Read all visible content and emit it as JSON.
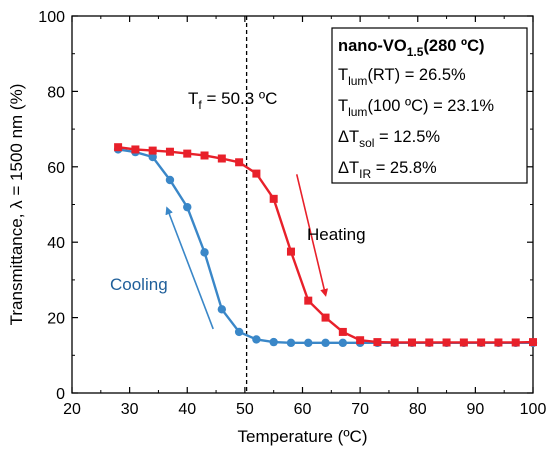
{
  "chart_data": {
    "type": "line",
    "xlabel": "Temperature (ºC)",
    "ylabel": "Transmittance, λ = 1500 nm (%)",
    "xlim": [
      20,
      100
    ],
    "ylim": [
      0,
      100
    ],
    "xticks": [
      "20",
      "30",
      "40",
      "50",
      "60",
      "70",
      "80",
      "90",
      "100"
    ],
    "yticks": [
      "0",
      "20",
      "40",
      "60",
      "80",
      "100"
    ],
    "grid": false,
    "series": [
      {
        "name": "Heating",
        "color": "#e8202a",
        "marker": "square",
        "x": [
          28,
          31,
          34,
          37,
          40,
          43,
          46,
          49,
          52,
          55,
          58,
          61,
          64,
          67,
          70,
          73,
          76,
          79,
          82,
          85,
          88,
          91,
          94,
          97,
          100
        ],
        "y": [
          65.2,
          64.6,
          64.3,
          64.0,
          63.5,
          63.0,
          62.2,
          61.2,
          58.2,
          51.5,
          37.5,
          24.5,
          20.0,
          16.2,
          14.0,
          13.5,
          13.4,
          13.4,
          13.4,
          13.4,
          13.4,
          13.4,
          13.4,
          13.4,
          13.5
        ]
      },
      {
        "name": "Cooling",
        "color": "#3a87c8",
        "marker": "circle",
        "x": [
          28,
          31,
          34,
          37,
          40,
          43,
          46,
          49,
          52,
          55,
          58,
          61,
          64,
          67,
          70,
          73,
          76,
          79,
          82,
          85,
          88,
          91,
          94,
          97,
          100
        ],
        "y": [
          64.6,
          63.9,
          62.6,
          56.5,
          49.3,
          37.3,
          22.2,
          16.2,
          14.2,
          13.5,
          13.3,
          13.3,
          13.3,
          13.3,
          13.3,
          13.3,
          13.3,
          13.3,
          13.3,
          13.3,
          13.3,
          13.3,
          13.3,
          13.3,
          13.3
        ]
      }
    ],
    "vline": {
      "x": 50.3,
      "label_main": "T",
      "label_sub": "f",
      "label_rest": " = 50.3 ºC"
    },
    "annotations": {
      "heating_label": "Heating",
      "cooling_label": "Cooling",
      "heating_arrow": {
        "from": [
          59,
          58
        ],
        "to": [
          64,
          26
        ]
      },
      "cooling_arrow": {
        "from": [
          44.5,
          17
        ],
        "to": [
          36.5,
          49
        ]
      }
    },
    "legend_box": {
      "title_main": "nano-VO",
      "title_sub": "1.5",
      "title_rest": "(280 ºC)",
      "rows": [
        {
          "main": "T",
          "sub": "lum",
          "rest": "(RT) = 26.5%"
        },
        {
          "main": "T",
          "sub": "lum",
          "rest": "(100 ºC) = 23.1%"
        },
        {
          "main": "ΔT",
          "sub": "sol",
          "rest": " = 12.5%"
        },
        {
          "main": "ΔT",
          "sub": "IR",
          "rest": " = 25.8%"
        }
      ]
    }
  }
}
